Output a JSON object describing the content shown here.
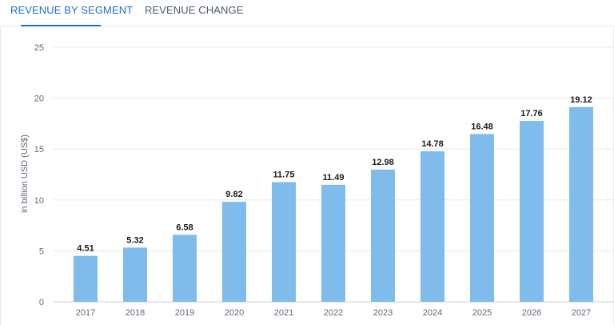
{
  "tabs": [
    {
      "label": "REVENUE BY SEGMENT",
      "active": true
    },
    {
      "label": "REVENUE CHANGE",
      "active": false
    }
  ],
  "colors": {
    "bar": "#7fbbeb",
    "accent": "#1f6fd0",
    "grid": "#e6e9ee"
  },
  "chart_data": {
    "type": "bar",
    "categories": [
      "2017",
      "2018",
      "2019",
      "2020",
      "2021",
      "2022",
      "2023",
      "2024",
      "2025",
      "2026",
      "2027"
    ],
    "values": [
      4.51,
      5.32,
      6.58,
      9.82,
      11.75,
      11.49,
      12.98,
      14.78,
      16.48,
      17.76,
      19.12
    ],
    "value_labels": [
      "4.51",
      "5.32",
      "6.58",
      "9.82",
      "11.75",
      "11.49",
      "12.98",
      "14.78",
      "16.48",
      "17.76",
      "19.12"
    ],
    "ylabel": "in billion USD (US$)",
    "ylim": [
      0,
      25
    ],
    "yticks": [
      0,
      5,
      10,
      15,
      20,
      25
    ],
    "grid": true,
    "legend": "none"
  }
}
